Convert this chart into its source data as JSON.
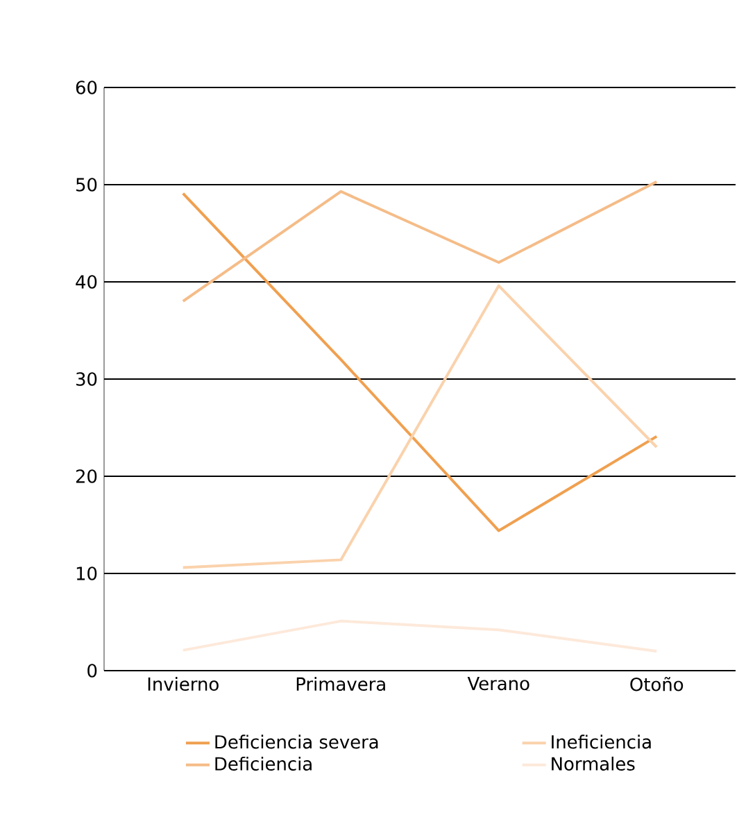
{
  "chart_data": {
    "type": "line",
    "categories": [
      "Invierno",
      "Primavera",
      "Verano",
      "Otoño"
    ],
    "series": [
      {
        "name": "Deficiencia severa",
        "color": "#f0a050",
        "values": [
          49.1,
          32,
          14.4,
          24.1
        ]
      },
      {
        "name": "Deficiencia",
        "color": "#f5bc88",
        "values": [
          38,
          49.3,
          42,
          50.3
        ]
      },
      {
        "name": "Ineficiencia",
        "color": "#fad2ac",
        "values": [
          10.6,
          11.4,
          39.6,
          23
        ]
      },
      {
        "name": "Normales",
        "color": "#fde9da",
        "values": [
          2.1,
          5.1,
          4.2,
          2
        ]
      }
    ],
    "ylim": [
      0,
      60
    ],
    "yticks": [
      0,
      10,
      20,
      30,
      40,
      50,
      60
    ],
    "grid": "y",
    "legend": "bottom",
    "marker": "none",
    "line_style": "solid"
  }
}
